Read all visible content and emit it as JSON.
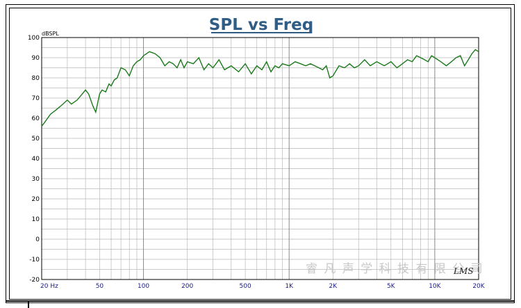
{
  "chart_data": {
    "type": "line",
    "title": "SPL vs Freq",
    "ylabel": "dBSPL",
    "xlabel": "",
    "x_scale": "log",
    "xlim": [
      20,
      20000
    ],
    "ylim": [
      -20,
      100
    ],
    "y_ticks": [
      "100",
      "90",
      "80",
      "70",
      "60",
      "50",
      "40",
      "30",
      "20",
      "10",
      "0",
      "-10",
      "-20"
    ],
    "x_tick_labels": [
      {
        "value": 20,
        "label": "20 Hz"
      },
      {
        "value": 50,
        "label": "50"
      },
      {
        "value": 100,
        "label": "100"
      },
      {
        "value": 200,
        "label": "200"
      },
      {
        "value": 500,
        "label": "500"
      },
      {
        "value": 1000,
        "label": "1K"
      },
      {
        "value": 2000,
        "label": "2K"
      },
      {
        "value": 5000,
        "label": "5K"
      },
      {
        "value": 10000,
        "label": "10K"
      },
      {
        "value": 20000,
        "label": "20K"
      }
    ],
    "grid": true,
    "line_color": "#1a7a1a",
    "series": [
      {
        "x": [
          20,
          21,
          23,
          25,
          27,
          30,
          32,
          35,
          37,
          40,
          42,
          45,
          47,
          50,
          52,
          55,
          58,
          60,
          63,
          66,
          70,
          75,
          80,
          85,
          90,
          95,
          100,
          110,
          120,
          130,
          140,
          150,
          160,
          170,
          180,
          190,
          200,
          220,
          240,
          260,
          280,
          300,
          330,
          360,
          400,
          450,
          500,
          550,
          600,
          650,
          700,
          750,
          800,
          850,
          900,
          1000,
          1100,
          1200,
          1300,
          1400,
          1500,
          1600,
          1700,
          1800,
          1900,
          2000,
          2200,
          2400,
          2600,
          2800,
          3000,
          3300,
          3600,
          4000,
          4500,
          5000,
          5500,
          6000,
          6500,
          7000,
          7500,
          8000,
          8500,
          9000,
          9500,
          10000,
          11000,
          12000,
          13000,
          14000,
          15000,
          16000,
          17000,
          18000,
          19000,
          20000
        ],
        "y": [
          56,
          58,
          62,
          64,
          66,
          69,
          67,
          69,
          71,
          74,
          72,
          66,
          63,
          72,
          74,
          73,
          77,
          76,
          79,
          80,
          85,
          84,
          81,
          86,
          88,
          89,
          91,
          93,
          92,
          90,
          86,
          88,
          87,
          85,
          89,
          85,
          88,
          87,
          90,
          84,
          87,
          85,
          89,
          84,
          86,
          83,
          87,
          82,
          86,
          84,
          88,
          83,
          86,
          85,
          87,
          86,
          88,
          87,
          86,
          87,
          86,
          85,
          84,
          86,
          80,
          81,
          86,
          85,
          87,
          85,
          86,
          89,
          86,
          88,
          86,
          88,
          85,
          87,
          89,
          88,
          91,
          90,
          89,
          88,
          91,
          90,
          88,
          86,
          88,
          90,
          91,
          86,
          89,
          92,
          94,
          93
        ]
      }
    ]
  },
  "watermark": "睿 凡 声 学 科 技 有 限 公 司",
  "signature": "LMS"
}
